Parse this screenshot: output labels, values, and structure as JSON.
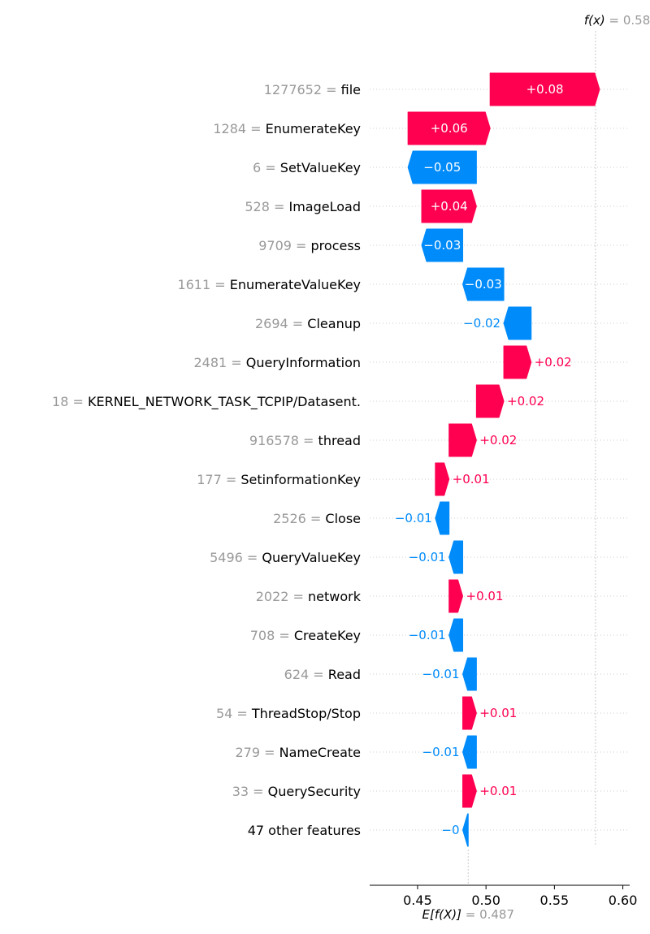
{
  "chart_data": {
    "type": "waterfall",
    "base_value": 0.487,
    "base_value_label": "0.487",
    "output_value": 0.58,
    "output_value_label": "0.58",
    "fx_label": "f(x)",
    "ex_label": "E[f(X)]",
    "x_ticks": [
      "0.45",
      "0.50",
      "0.55",
      "0.60"
    ],
    "xlim": [
      0.415,
      0.605
    ],
    "colors": {
      "positive": "#ff0051",
      "negative": "#008bfb",
      "feature_value": "#999999",
      "guide": "#cccccc"
    },
    "features": [
      {
        "value": "1277652",
        "name": "file",
        "shap": 0.08,
        "label": "+0.08"
      },
      {
        "value": "1284",
        "name": "EnumerateKey",
        "shap": 0.06,
        "label": "+0.06"
      },
      {
        "value": "6",
        "name": "SetValueKey",
        "shap": -0.05,
        "label": "−0.05"
      },
      {
        "value": "528",
        "name": "ImageLoad",
        "shap": 0.04,
        "label": "+0.04"
      },
      {
        "value": "9709",
        "name": "process",
        "shap": -0.03,
        "label": "−0.03"
      },
      {
        "value": "1611",
        "name": "EnumerateValueKey",
        "shap": -0.03,
        "label": "−0.03"
      },
      {
        "value": "2694",
        "name": "Cleanup",
        "shap": -0.02,
        "label": "−0.02"
      },
      {
        "value": "2481",
        "name": "QueryInformation",
        "shap": 0.02,
        "label": "+0.02"
      },
      {
        "value": "18",
        "name": "KERNEL_NETWORK_TASK_TCPIP/Datasent.",
        "shap": 0.02,
        "label": "+0.02"
      },
      {
        "value": "916578",
        "name": "thread",
        "shap": 0.02,
        "label": "+0.02"
      },
      {
        "value": "177",
        "name": "SetinformationKey",
        "shap": 0.01,
        "label": "+0.01"
      },
      {
        "value": "2526",
        "name": "Close",
        "shap": -0.01,
        "label": "−0.01"
      },
      {
        "value": "5496",
        "name": "QueryValueKey",
        "shap": -0.01,
        "label": "−0.01"
      },
      {
        "value": "2022",
        "name": "network",
        "shap": 0.01,
        "label": "+0.01"
      },
      {
        "value": "708",
        "name": "CreateKey",
        "shap": -0.01,
        "label": "−0.01"
      },
      {
        "value": "624",
        "name": "Read",
        "shap": -0.01,
        "label": "−0.01"
      },
      {
        "value": "54",
        "name": "ThreadStop/Stop",
        "shap": 0.01,
        "label": "+0.01"
      },
      {
        "value": "279",
        "name": "NameCreate",
        "shap": -0.01,
        "label": "−0.01"
      },
      {
        "value": "33",
        "name": "QuerySecurity",
        "shap": 0.01,
        "label": "+0.01"
      },
      {
        "value": "",
        "name": "47 other features",
        "shap": -0.004,
        "label": "−0"
      }
    ]
  }
}
